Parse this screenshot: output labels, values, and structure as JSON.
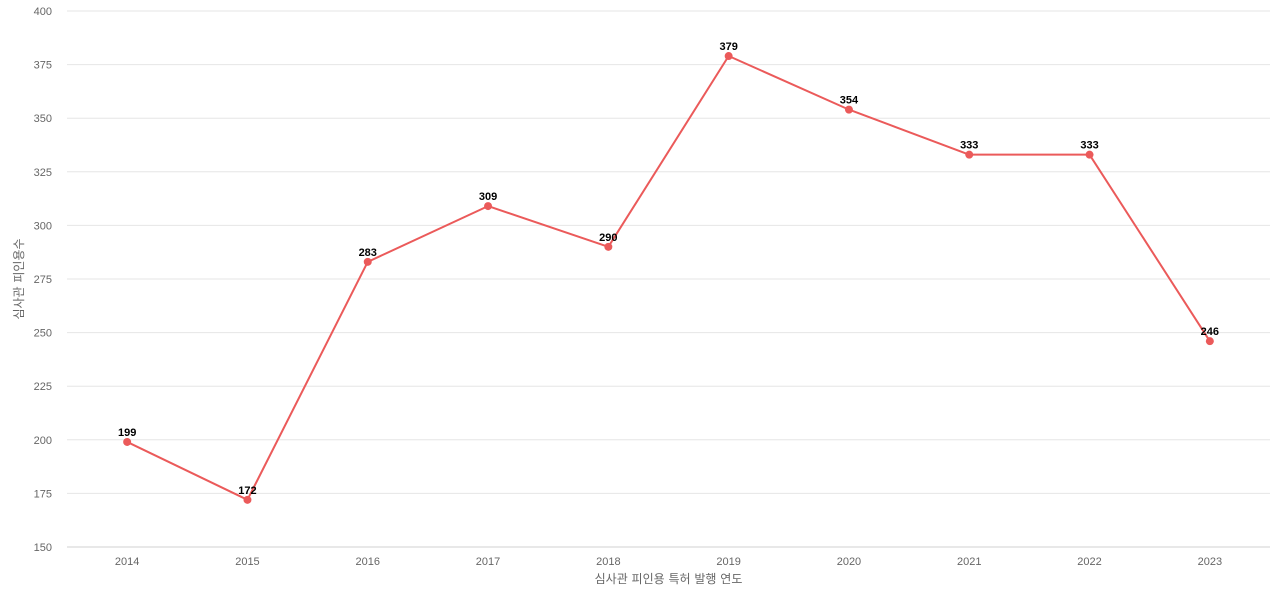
{
  "chart_data": {
    "type": "line",
    "title": "",
    "xlabel": "심사관 피인용 특허 발행 연도",
    "ylabel": "심사관 피인용수",
    "categories": [
      "2014",
      "2015",
      "2016",
      "2017",
      "2018",
      "2019",
      "2020",
      "2021",
      "2022",
      "2023"
    ],
    "series": [
      {
        "values": [
          199,
          172,
          283,
          309,
          290,
          379,
          354,
          333,
          333,
          246
        ],
        "color": "#eb5a5a"
      }
    ],
    "ylim": [
      150,
      400
    ],
    "yticks": [
      150,
      175,
      200,
      225,
      250,
      275,
      300,
      325,
      350,
      375,
      400
    ],
    "grid": true,
    "legend": "none",
    "data_labels": true
  }
}
